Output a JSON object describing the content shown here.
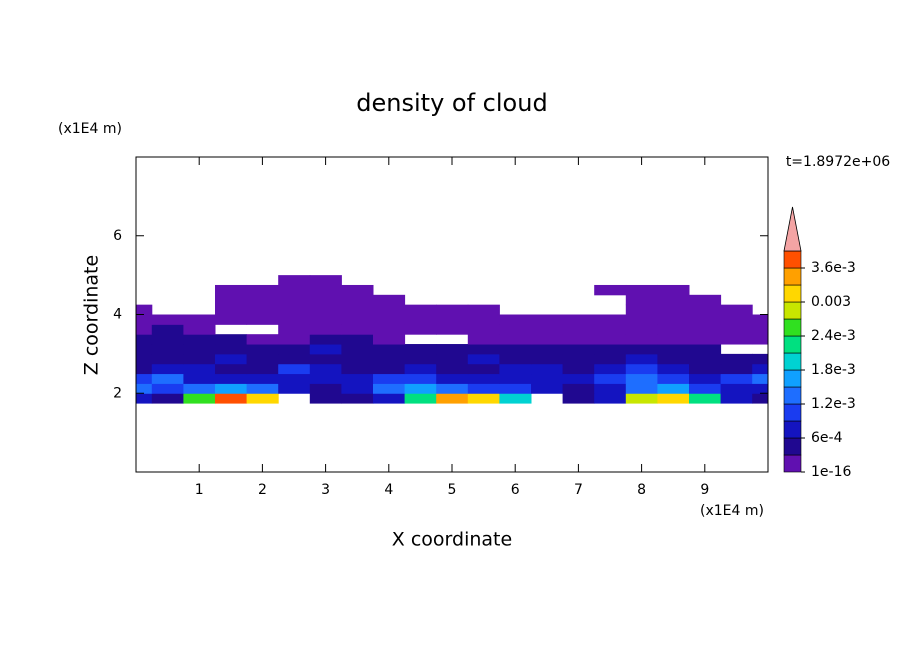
{
  "chart_data": {
    "type": "contour",
    "title": "density of cloud",
    "x_label": "X coordinate",
    "y_label": "Z coordinate",
    "x_unit": "(x1E4 m)",
    "y_unit": "(x1E4 m)",
    "time_label": "t=1.8972e+06",
    "xlim": [
      0,
      10
    ],
    "ylim": [
      0,
      8
    ],
    "xticks": [
      1,
      2,
      3,
      4,
      5,
      6,
      7,
      8,
      9
    ],
    "yticks": [
      2,
      4,
      6
    ],
    "x": [
      0,
      0.5,
      1,
      1.5,
      2,
      2.5,
      3,
      3.5,
      4,
      4.5,
      5,
      5.5,
      6,
      6.5,
      7,
      7.5,
      8,
      8.5,
      9,
      9.5,
      10
    ],
    "y": [
      1.875,
      2.125,
      2.375,
      2.625,
      2.875,
      3.125,
      3.375,
      3.625,
      3.875,
      4.125,
      4.375,
      4.625,
      4.875
    ],
    "z": [
      [
        0.0007,
        0.0004,
        0.0025,
        0.0037,
        0.0031,
        null,
        0.0004,
        0.0004,
        0.0007,
        0.0022,
        0.0034,
        0.0031,
        0.0019,
        null,
        0.0004,
        0.0007,
        0.0028,
        0.0031,
        0.0022,
        0.0007,
        0.0004
      ],
      [
        0.0013,
        0.001,
        0.0013,
        0.0016,
        0.0013,
        0.0007,
        0.0004,
        0.0007,
        0.0013,
        0.0016,
        0.0013,
        0.001,
        0.001,
        0.0007,
        0.0004,
        0.0007,
        0.0013,
        0.0016,
        0.001,
        0.0007,
        0.0007
      ],
      [
        0.001,
        0.0013,
        0.0007,
        0.0007,
        0.0007,
        0.0007,
        0.0007,
        0.0007,
        0.001,
        0.001,
        0.0007,
        0.0007,
        0.0007,
        0.0007,
        0.0007,
        0.001,
        0.0013,
        0.001,
        0.0007,
        0.001,
        0.0013
      ],
      [
        0.0004,
        0.0007,
        0.0007,
        0.0004,
        0.0004,
        0.001,
        0.0007,
        0.0004,
        0.0004,
        0.0007,
        0.0004,
        0.0004,
        0.0007,
        0.0007,
        0.0004,
        0.0007,
        0.001,
        0.0007,
        0.0004,
        0.0004,
        0.0007
      ],
      [
        0.0004,
        0.0004,
        0.0004,
        0.0007,
        0.0004,
        0.0004,
        0.0004,
        0.0004,
        0.0004,
        0.0004,
        0.0004,
        0.0007,
        0.0004,
        0.0004,
        0.0004,
        0.0004,
        0.0007,
        0.0004,
        0.0004,
        0.0004,
        0.0004
      ],
      [
        0.0004,
        0.0004,
        0.0004,
        0.0004,
        0.0004,
        0.0004,
        0.0007,
        0.0004,
        0.0004,
        0.0004,
        0.0004,
        0.0004,
        0.0004,
        0.0004,
        0.0004,
        0.0004,
        0.0004,
        0.0004,
        0.0004,
        null,
        null
      ],
      [
        0.0004,
        0.0004,
        0.0004,
        0.0004,
        0.0001,
        0.0001,
        0.0004,
        0.0004,
        0.0001,
        null,
        null,
        0.0001,
        0.0001,
        0.0001,
        0.0001,
        0.0001,
        0.0001,
        0.0001,
        0.0001,
        0.0001,
        0.0001
      ],
      [
        0.0001,
        0.0004,
        0.0001,
        null,
        null,
        0.0001,
        0.0001,
        0.0001,
        0.0001,
        0.0001,
        0.0001,
        0.0001,
        0.0001,
        0.0001,
        0.0001,
        0.0001,
        0.0001,
        0.0001,
        0.0001,
        0.0001,
        0.0001
      ],
      [
        0.0001,
        0.0001,
        0.0001,
        0.0001,
        0.0001,
        0.0001,
        0.0001,
        0.0001,
        0.0001,
        0.0001,
        0.0001,
        0.0001,
        0.0001,
        0.0001,
        0.0001,
        0.0001,
        0.0001,
        0.0001,
        0.0001,
        0.0001,
        0.0001
      ],
      [
        0.0001,
        null,
        null,
        0.0001,
        0.0001,
        0.0001,
        0.0001,
        0.0001,
        0.0001,
        0.0001,
        0.0001,
        0.0001,
        null,
        null,
        null,
        null,
        0.0001,
        0.0001,
        0.0001,
        0.0001,
        null
      ],
      [
        null,
        null,
        null,
        0.0001,
        0.0001,
        0.0001,
        0.0001,
        0.0001,
        0.0001,
        null,
        null,
        null,
        null,
        null,
        null,
        null,
        0.0001,
        0.0001,
        0.0001,
        null,
        null
      ],
      [
        null,
        null,
        null,
        0.0001,
        0.0001,
        0.0001,
        0.0001,
        0.0001,
        null,
        null,
        null,
        null,
        null,
        null,
        null,
        0.0001,
        0.0001,
        0.0001,
        null,
        null,
        null
      ],
      [
        null,
        null,
        null,
        null,
        null,
        0.0001,
        0.0001,
        null,
        null,
        null,
        null,
        null,
        null,
        null,
        null,
        null,
        null,
        null,
        null,
        null,
        null
      ]
    ],
    "colorbar": {
      "levels": [
        1e-16,
        0.0003,
        0.0006,
        0.0009,
        0.0012,
        0.0015,
        0.0018,
        0.0021,
        0.0024,
        0.0027,
        0.003,
        0.0033,
        0.0036,
        0.0039
      ],
      "colors": [
        "#6010b0",
        "#200890",
        "#1414c0",
        "#1a3cf0",
        "#1e6eff",
        "#10a0ff",
        "#00d2d2",
        "#00e080",
        "#30e020",
        "#c8e600",
        "#ffd700",
        "#ffa000",
        "#ff5000"
      ],
      "over_color": "#f4a4a4",
      "ticks": [
        1e-16,
        {
          "value": 0.0006,
          "label": "6e-4"
        },
        {
          "value": 0.0012,
          "label": "1.2e-3"
        },
        {
          "value": 0.0018,
          "label": "1.8e-3"
        },
        {
          "value": 0.0024,
          "label": "2.4e-3"
        },
        0.003,
        {
          "value": 0.0036,
          "label": "3.6e-3"
        }
      ]
    }
  }
}
